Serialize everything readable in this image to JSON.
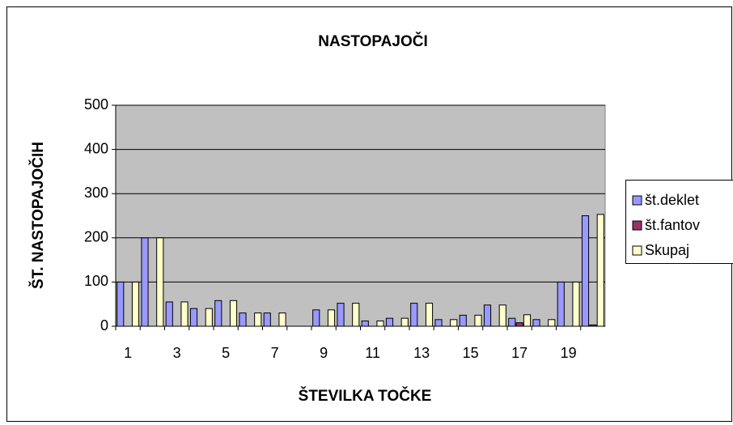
{
  "chart_data": {
    "type": "bar",
    "title": "NASTOPAJOČI",
    "x_label": "ŠTEVILKA TOČKE",
    "y_label": "ŠT. NASTOPAJOČIH",
    "categories": [
      "1",
      null,
      "3",
      null,
      "5",
      null,
      "7",
      null,
      "9",
      null,
      "11",
      null,
      "13",
      null,
      "15",
      null,
      "17",
      null,
      "19",
      null
    ],
    "series": [
      {
        "name": "št.deklet",
        "color": "#9999ff",
        "values": [
          100,
          200,
          55,
          40,
          58,
          30,
          30,
          0,
          37,
          52,
          12,
          18,
          52,
          15,
          25,
          48,
          18,
          15,
          100,
          250
        ]
      },
      {
        "name": "št.fantov",
        "color": "#993366",
        "values": [
          0,
          0,
          0,
          0,
          0,
          0,
          0,
          0,
          0,
          0,
          0,
          0,
          0,
          0,
          0,
          0,
          8,
          0,
          0,
          3
        ]
      },
      {
        "name": "Skupaj",
        "color": "#ffffcc",
        "values": [
          100,
          200,
          55,
          40,
          58,
          30,
          30,
          0,
          37,
          52,
          12,
          18,
          52,
          15,
          25,
          48,
          26,
          15,
          100,
          253
        ]
      }
    ],
    "ylim": [
      0,
      500
    ],
    "yticks": [
      0,
      100,
      200,
      300,
      400,
      500
    ],
    "grid": true,
    "legend": "right",
    "plot_background": "#c0c0c0"
  }
}
